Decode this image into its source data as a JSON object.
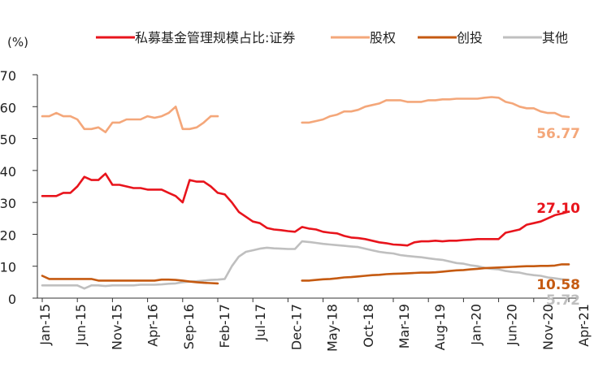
{
  "chart_data": {
    "type": "line",
    "title": "",
    "ylabel": "(%)",
    "xlabel": "",
    "ylim": [
      0,
      70
    ],
    "yticks": [
      "0",
      "10",
      "20",
      "30",
      "40",
      "50",
      "60",
      "70"
    ],
    "x_tick_labels": [
      "Jan-15",
      "Jun-15",
      "Nov-15",
      "Apr-16",
      "Sep-16",
      "Feb-17",
      "Jul-17",
      "Dec-17",
      "May-18",
      "Oct-18",
      "Mar-19",
      "Aug-19",
      "Jan-20",
      "Jun-20",
      "Nov-20",
      "Apr-21"
    ],
    "x_range_months": [
      0,
      75
    ],
    "legend_position": "top",
    "series": [
      {
        "name": "私募基金管理规模占比:证券",
        "color": "#e8141c",
        "end_label": "27.10",
        "segments": [
          [
            [
              0,
              32
            ],
            [
              1,
              32
            ],
            [
              2,
              32
            ],
            [
              3,
              33
            ],
            [
              4,
              33
            ],
            [
              5,
              35
            ],
            [
              6,
              38
            ],
            [
              7,
              37
            ],
            [
              8,
              37
            ],
            [
              9,
              39
            ],
            [
              10,
              35.5
            ],
            [
              11,
              35.5
            ],
            [
              12,
              35
            ],
            [
              13,
              34.5
            ],
            [
              14,
              34.5
            ],
            [
              15,
              34
            ],
            [
              16,
              34
            ],
            [
              17,
              34
            ],
            [
              18,
              33
            ],
            [
              19,
              32
            ],
            [
              20,
              30
            ],
            [
              21,
              37
            ],
            [
              22,
              36.5
            ],
            [
              23,
              36.5
            ],
            [
              24,
              35
            ],
            [
              25,
              33
            ],
            [
              26,
              32.5
            ],
            [
              27,
              30
            ],
            [
              28,
              27
            ],
            [
              29,
              25.5
            ],
            [
              30,
              24
            ],
            [
              31,
              23.5
            ],
            [
              32,
              22
            ],
            [
              33,
              21.5
            ],
            [
              34,
              21.3
            ],
            [
              35,
              21
            ],
            [
              36,
              20.8
            ],
            [
              37,
              22.3
            ],
            [
              38,
              21.8
            ],
            [
              39,
              21.5
            ],
            [
              40,
              20.8
            ],
            [
              41,
              20.5
            ],
            [
              42,
              20.3
            ],
            [
              43,
              19.5
            ],
            [
              44,
              19
            ],
            [
              45,
              18.8
            ],
            [
              46,
              18.5
            ],
            [
              47,
              18
            ],
            [
              48,
              17.5
            ],
            [
              49,
              17.2
            ],
            [
              50,
              16.8
            ],
            [
              51,
              16.7
            ],
            [
              52,
              16.5
            ],
            [
              53,
              17.5
            ],
            [
              54,
              17.8
            ],
            [
              55,
              17.8
            ],
            [
              56,
              18
            ],
            [
              57,
              17.8
            ],
            [
              58,
              18
            ],
            [
              59,
              18
            ],
            [
              60,
              18.2
            ],
            [
              61,
              18.3
            ],
            [
              62,
              18.5
            ],
            [
              63,
              18.5
            ],
            [
              64,
              18.5
            ],
            [
              65,
              18.5
            ],
            [
              66,
              20.5
            ],
            [
              67,
              21
            ],
            [
              68,
              21.5
            ],
            [
              69,
              23
            ],
            [
              70,
              23.5
            ],
            [
              71,
              24
            ],
            [
              72,
              25
            ],
            [
              73,
              26
            ],
            [
              74,
              26.5
            ],
            [
              75,
              27.1
            ]
          ]
        ]
      },
      {
        "name": "股权",
        "color": "#f4a77a",
        "end_label": "56.77",
        "segments": [
          [
            [
              0,
              57
            ],
            [
              1,
              57
            ],
            [
              2,
              58
            ],
            [
              3,
              57
            ],
            [
              4,
              57
            ],
            [
              5,
              56
            ],
            [
              6,
              53
            ],
            [
              7,
              53
            ],
            [
              8,
              53.5
            ],
            [
              9,
              52
            ],
            [
              10,
              55
            ],
            [
              11,
              55
            ],
            [
              12,
              56
            ],
            [
              13,
              56
            ],
            [
              14,
              56
            ],
            [
              15,
              57
            ],
            [
              16,
              56.5
            ],
            [
              17,
              57
            ],
            [
              18,
              58
            ],
            [
              19,
              60
            ],
            [
              20,
              53
            ],
            [
              21,
              53
            ],
            [
              22,
              53.5
            ],
            [
              23,
              55
            ],
            [
              24,
              57
            ],
            [
              25,
              57
            ]
          ],
          [
            [
              37,
              55
            ],
            [
              38,
              55
            ],
            [
              39,
              55.5
            ],
            [
              40,
              56
            ],
            [
              41,
              57
            ],
            [
              42,
              57.5
            ],
            [
              43,
              58.5
            ],
            [
              44,
              58.5
            ],
            [
              45,
              59
            ],
            [
              46,
              60
            ],
            [
              47,
              60.5
            ],
            [
              48,
              61
            ],
            [
              49,
              62
            ],
            [
              50,
              62
            ],
            [
              51,
              62
            ],
            [
              52,
              61.5
            ],
            [
              53,
              61.5
            ],
            [
              54,
              61.5
            ],
            [
              55,
              62
            ],
            [
              56,
              62
            ],
            [
              57,
              62.3
            ],
            [
              58,
              62.3
            ],
            [
              59,
              62.5
            ],
            [
              60,
              62.5
            ],
            [
              61,
              62.5
            ],
            [
              62,
              62.5
            ],
            [
              63,
              62.8
            ],
            [
              64,
              63
            ],
            [
              65,
              62.8
            ],
            [
              66,
              61.5
            ],
            [
              67,
              61
            ],
            [
              68,
              60
            ],
            [
              69,
              59.5
            ],
            [
              70,
              59.5
            ],
            [
              71,
              58.5
            ],
            [
              72,
              58
            ],
            [
              73,
              58
            ],
            [
              74,
              57
            ],
            [
              75,
              56.77
            ]
          ]
        ]
      },
      {
        "name": "创投",
        "color": "#c55a11",
        "end_label": "10.58",
        "segments": [
          [
            [
              0,
              7
            ],
            [
              1,
              6
            ],
            [
              2,
              6
            ],
            [
              3,
              6
            ],
            [
              4,
              6
            ],
            [
              5,
              6
            ],
            [
              6,
              6
            ],
            [
              7,
              6
            ],
            [
              8,
              5.5
            ],
            [
              9,
              5.5
            ],
            [
              10,
              5.5
            ],
            [
              11,
              5.5
            ],
            [
              12,
              5.5
            ],
            [
              13,
              5.5
            ],
            [
              14,
              5.5
            ],
            [
              15,
              5.5
            ],
            [
              16,
              5.5
            ],
            [
              17,
              5.8
            ],
            [
              18,
              5.8
            ],
            [
              19,
              5.7
            ],
            [
              20,
              5.5
            ],
            [
              21,
              5.2
            ],
            [
              22,
              5
            ],
            [
              23,
              4.8
            ],
            [
              24,
              4.7
            ],
            [
              25,
              4.6
            ]
          ],
          [
            [
              37,
              5.5
            ],
            [
              38,
              5.5
            ],
            [
              39,
              5.7
            ],
            [
              40,
              5.9
            ],
            [
              41,
              6
            ],
            [
              42,
              6.2
            ],
            [
              43,
              6.5
            ],
            [
              44,
              6.6
            ],
            [
              45,
              6.8
            ],
            [
              46,
              7
            ],
            [
              47,
              7.2
            ],
            [
              48,
              7.3
            ],
            [
              49,
              7.5
            ],
            [
              50,
              7.6
            ],
            [
              51,
              7.7
            ],
            [
              52,
              7.8
            ],
            [
              53,
              7.9
            ],
            [
              54,
              8
            ],
            [
              55,
              8
            ],
            [
              56,
              8.1
            ],
            [
              57,
              8.3
            ],
            [
              58,
              8.5
            ],
            [
              59,
              8.7
            ],
            [
              60,
              8.8
            ],
            [
              61,
              9
            ],
            [
              62,
              9.2
            ],
            [
              63,
              9.4
            ],
            [
              64,
              9.5
            ],
            [
              65,
              9.6
            ],
            [
              66,
              9.7
            ],
            [
              67,
              9.8
            ],
            [
              68,
              9.9
            ],
            [
              69,
              10
            ],
            [
              70,
              10
            ],
            [
              71,
              10.1
            ],
            [
              72,
              10.1
            ],
            [
              73,
              10.2
            ],
            [
              74,
              10.6
            ],
            [
              75,
              10.58
            ]
          ]
        ]
      },
      {
        "name": "其他",
        "color": "#bfbfbf",
        "end_label": "5.72",
        "segments": [
          [
            [
              0,
              4
            ],
            [
              1,
              4
            ],
            [
              2,
              4
            ],
            [
              3,
              4
            ],
            [
              4,
              4
            ],
            [
              5,
              4
            ],
            [
              6,
              3
            ],
            [
              7,
              4
            ],
            [
              8,
              4
            ],
            [
              9,
              3.8
            ],
            [
              10,
              4
            ],
            [
              11,
              4
            ],
            [
              12,
              4
            ],
            [
              13,
              4
            ],
            [
              14,
              4.2
            ],
            [
              15,
              4.2
            ],
            [
              16,
              4.2
            ],
            [
              17,
              4.3
            ],
            [
              18,
              4.5
            ],
            [
              19,
              4.6
            ],
            [
              20,
              5
            ],
            [
              21,
              5.2
            ],
            [
              22,
              5.3
            ],
            [
              23,
              5.5
            ],
            [
              24,
              5.7
            ],
            [
              25,
              5.8
            ],
            [
              26,
              6
            ],
            [
              27,
              10
            ],
            [
              28,
              13
            ],
            [
              29,
              14.5
            ],
            [
              30,
              15
            ],
            [
              31,
              15.5
            ],
            [
              32,
              15.8
            ],
            [
              33,
              15.6
            ],
            [
              34,
              15.5
            ],
            [
              35,
              15.4
            ],
            [
              36,
              15.4
            ],
            [
              37,
              17.8
            ],
            [
              38,
              17.6
            ],
            [
              39,
              17.3
            ],
            [
              40,
              17
            ],
            [
              41,
              16.8
            ],
            [
              42,
              16.6
            ],
            [
              43,
              16.4
            ],
            [
              44,
              16.2
            ],
            [
              45,
              16
            ],
            [
              46,
              15.5
            ],
            [
              47,
              15
            ],
            [
              48,
              14.5
            ],
            [
              49,
              14.2
            ],
            [
              50,
              14
            ],
            [
              51,
              13.5
            ],
            [
              52,
              13.2
            ],
            [
              53,
              13
            ],
            [
              54,
              12.8
            ],
            [
              55,
              12.5
            ],
            [
              56,
              12.2
            ],
            [
              57,
              12
            ],
            [
              58,
              11.5
            ],
            [
              59,
              11
            ],
            [
              60,
              10.8
            ],
            [
              61,
              10.3
            ],
            [
              62,
              10
            ],
            [
              63,
              9.5
            ],
            [
              64,
              9.2
            ],
            [
              65,
              9
            ],
            [
              66,
              8.5
            ],
            [
              67,
              8.2
            ],
            [
              68,
              8
            ],
            [
              69,
              7.5
            ],
            [
              70,
              7.2
            ],
            [
              71,
              7
            ],
            [
              72,
              6.5
            ],
            [
              73,
              6.2
            ],
            [
              74,
              5.9
            ],
            [
              75,
              5.72
            ]
          ]
        ]
      }
    ]
  }
}
